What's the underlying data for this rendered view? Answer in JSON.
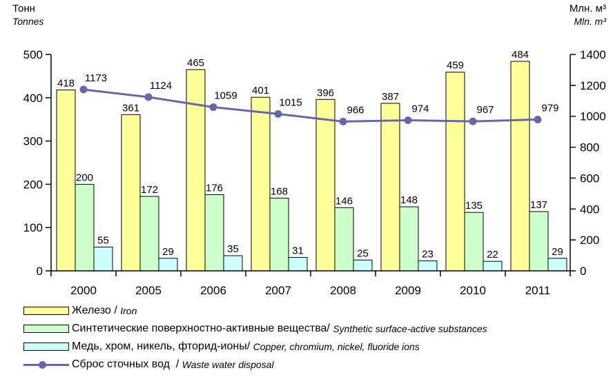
{
  "left_axis_title": {
    "ru": "Тонн",
    "en": "Tonnes"
  },
  "right_axis_title": {
    "ru": "Млн. м³",
    "en": "Mln. m³"
  },
  "colors": {
    "iron": "#ffff99",
    "surfactants": "#ccffcc",
    "metals": "#ccffff",
    "wastewater": "#6468a8"
  },
  "legend": [
    {
      "ru": "Железо",
      "sep": " / ",
      "en": "Iron",
      "kind": "bar",
      "color": "#ffff99"
    },
    {
      "ru": "Синтетические поверхностно-активные вещества",
      "sep": "/ ",
      "en": "Synthetic surface-active substances",
      "kind": "bar",
      "color": "#ccffcc"
    },
    {
      "ru": "Медь, хром, никель, фторид-ионы",
      "sep": "/ ",
      "en": "Copper, chromium, nickel, fluoride ions",
      "kind": "bar",
      "color": "#ccffff"
    },
    {
      "ru": "Сброс сточных вод",
      "sep": "  / ",
      "en": "Waste water disposal",
      "kind": "line",
      "color": "#6468a8"
    }
  ],
  "chart_data": {
    "type": "bar",
    "categories": [
      "2000",
      "2005",
      "2006",
      "2007",
      "2008",
      "2009",
      "2010",
      "2011"
    ],
    "series": [
      {
        "name": "Железо / Iron",
        "axis": "left",
        "values": [
          418,
          361,
          465,
          401,
          396,
          387,
          459,
          484
        ]
      },
      {
        "name": "Синтетические поверхностно-активные вещества / Synthetic surface-active substances",
        "axis": "left",
        "values": [
          200,
          172,
          176,
          168,
          146,
          148,
          135,
          137
        ]
      },
      {
        "name": "Медь, хром, никель, фторид-ионы / Copper, chromium, nickel, fluoride ions",
        "axis": "left",
        "values": [
          55,
          29,
          35,
          31,
          25,
          23,
          22,
          29
        ]
      },
      {
        "name": "Сброс сточных вод / Waste water disposal",
        "axis": "right",
        "type": "line",
        "values": [
          1173,
          1124,
          1059,
          1015,
          966,
          974,
          967,
          979
        ]
      }
    ],
    "y_left": {
      "range": [
        0,
        500
      ],
      "ticks": [
        0,
        100,
        200,
        300,
        400,
        500
      ]
    },
    "y_right": {
      "range": [
        0,
        1400
      ],
      "ticks": [
        0,
        200,
        400,
        600,
        800,
        1000,
        1200,
        1400
      ]
    },
    "grid": false,
    "legend_position": "bottom"
  }
}
